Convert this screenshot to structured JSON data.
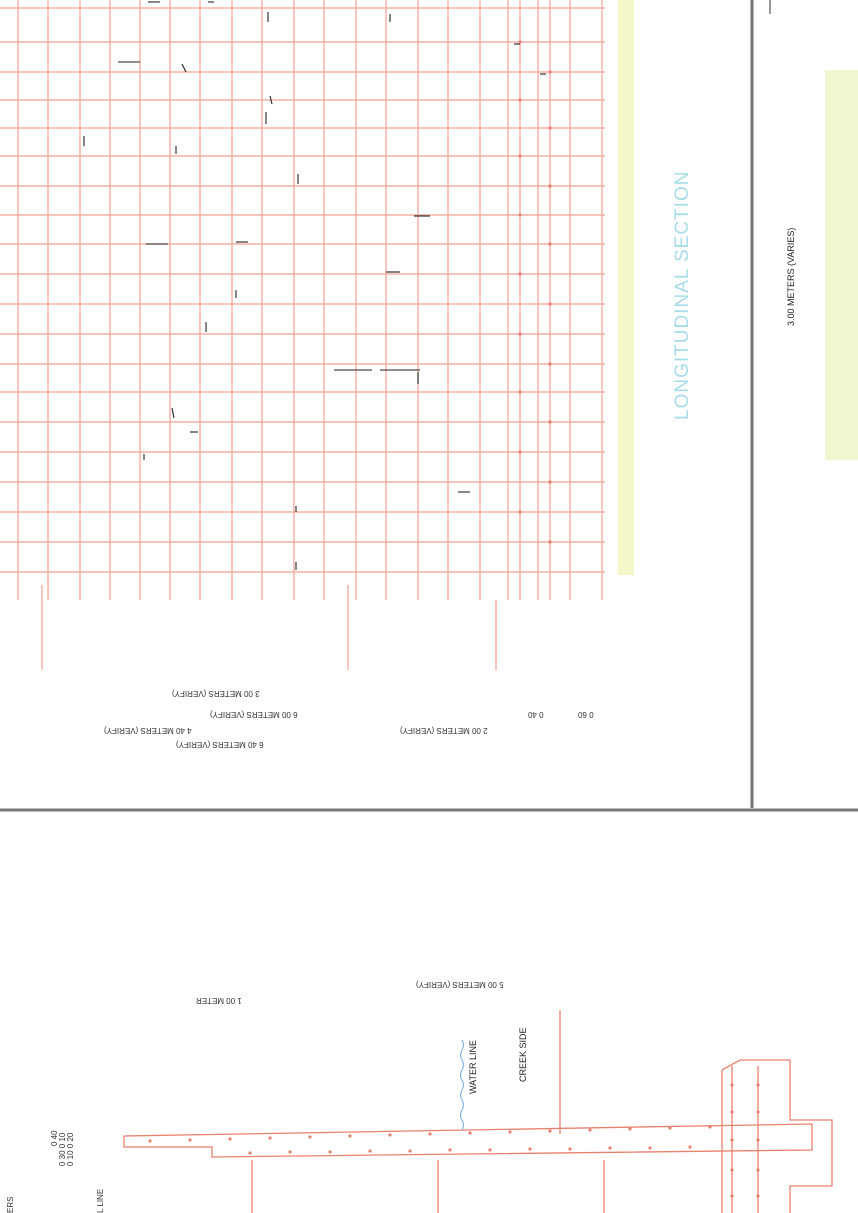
{
  "sheet": {
    "section_title": "LONGITUDINAL SECTION",
    "width_note": "3.00 METERS (VARIES)",
    "colors": {
      "rebar": "#e8826f",
      "grid": "#f2a190",
      "water": "#8ab4e0",
      "title": "#a7dde8",
      "highlight": "#f4f7c8",
      "frame": "#777777"
    }
  },
  "upper_dims": {
    "d1": "3 00 METERS (VERIFY)",
    "d2": "6 00 METERS (VERIFY)",
    "d3": "4 40 METERS (VERIFY)",
    "d4": "6 40 METERS (VERIFY)",
    "d5": "2 00 METERS (VERIFY)",
    "d6": "0 40",
    "d7": "0 60"
  },
  "lower": {
    "dim_1m": "1 00 METER",
    "dim_5m": "5 00 METERS (VERIFY)",
    "water_line": "WATER LINE",
    "creek_side": "CREEK SIDE",
    "edge_left": "ERS",
    "edge_line": "L LINE",
    "small_dims": [
      "0 40",
      "0 30 0 10",
      "0 10 0 20"
    ]
  }
}
